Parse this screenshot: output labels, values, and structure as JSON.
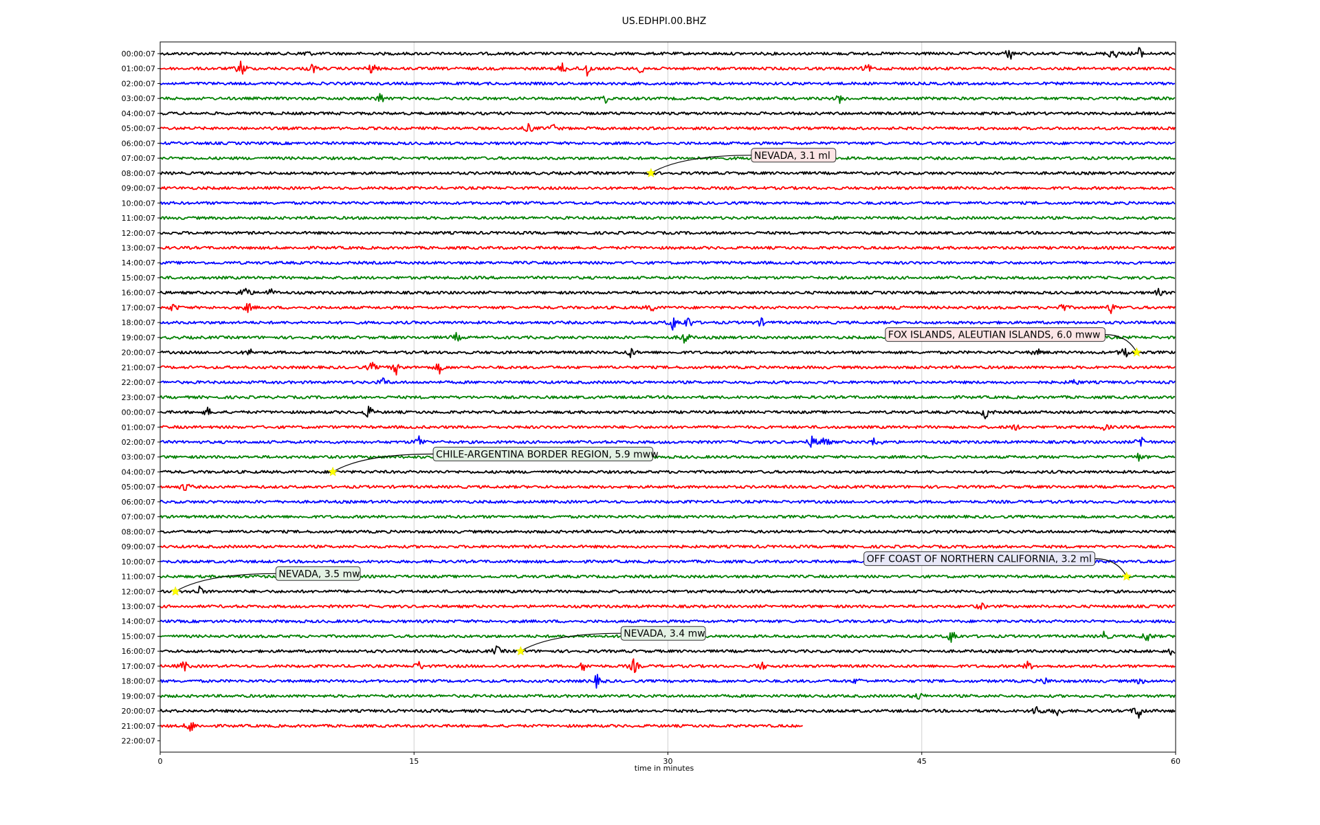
{
  "chart_data": {
    "type": "line",
    "title": "US.EDHPI.00.BHZ",
    "xlabel": "time in minutes",
    "ylabel": "",
    "xlim": [
      0,
      60
    ],
    "x_ticks": [
      "0",
      "15",
      "30",
      "45",
      "60"
    ],
    "x_tick_values": [
      0,
      15,
      30,
      45,
      60
    ],
    "grid": "vertical",
    "trace_colors": [
      "#000000",
      "#ff0000",
      "#0000ff",
      "#008000"
    ],
    "row_labels": [
      "00:00:07",
      "01:00:07",
      "02:00:07",
      "03:00:07",
      "04:00:07",
      "05:00:07",
      "06:00:07",
      "07:00:07",
      "08:00:07",
      "09:00:07",
      "10:00:07",
      "11:00:07",
      "12:00:07",
      "13:00:07",
      "14:00:07",
      "15:00:07",
      "16:00:07",
      "17:00:07",
      "18:00:07",
      "19:00:07",
      "20:00:07",
      "21:00:07",
      "22:00:07",
      "23:00:07",
      "00:00:07",
      "01:00:07",
      "02:00:07",
      "03:00:07",
      "04:00:07",
      "05:00:07",
      "06:00:07",
      "07:00:07",
      "08:00:07",
      "09:00:07",
      "10:00:07",
      "11:00:07",
      "12:00:07",
      "13:00:07",
      "14:00:07",
      "15:00:07",
      "16:00:07",
      "17:00:07",
      "18:00:07",
      "19:00:07",
      "20:00:07",
      "21:00:07",
      "22:00:07"
    ],
    "trace_end_minutes": [
      60,
      60,
      60,
      60,
      60,
      60,
      60,
      60,
      60,
      60,
      60,
      60,
      60,
      60,
      60,
      60,
      60,
      60,
      60,
      60,
      60,
      60,
      60,
      60,
      60,
      60,
      60,
      60,
      60,
      60,
      60,
      60,
      60,
      60,
      60,
      60,
      60,
      60,
      60,
      60,
      60,
      60,
      60,
      60,
      60,
      38,
      0
    ],
    "bursts": [
      {
        "row": 0,
        "minute": 8.6,
        "amp": 0.5
      },
      {
        "row": 0,
        "minute": 50.2,
        "amp": 0.8
      },
      {
        "row": 0,
        "minute": 56.3,
        "amp": 1.0
      },
      {
        "row": 0,
        "minute": 57.8,
        "amp": 0.9
      },
      {
        "row": 1,
        "minute": 4.8,
        "amp": 1.2
      },
      {
        "row": 1,
        "minute": 9.0,
        "amp": 0.6
      },
      {
        "row": 1,
        "minute": 12.5,
        "amp": 0.7
      },
      {
        "row": 1,
        "minute": 23.8,
        "amp": 0.7
      },
      {
        "row": 1,
        "minute": 25.2,
        "amp": 1.1
      },
      {
        "row": 1,
        "minute": 28.5,
        "amp": 0.9
      },
      {
        "row": 1,
        "minute": 41.8,
        "amp": 0.5
      },
      {
        "row": 3,
        "minute": 13.0,
        "amp": 0.7
      },
      {
        "row": 3,
        "minute": 26.3,
        "amp": 0.5
      },
      {
        "row": 3,
        "minute": 40.2,
        "amp": 0.6
      },
      {
        "row": 5,
        "minute": 21.8,
        "amp": 0.6
      },
      {
        "row": 5,
        "minute": 23.2,
        "amp": 0.5
      },
      {
        "row": 16,
        "minute": 5.0,
        "amp": 1.0
      },
      {
        "row": 16,
        "minute": 6.5,
        "amp": 0.5
      },
      {
        "row": 16,
        "minute": 59.0,
        "amp": 0.4
      },
      {
        "row": 17,
        "minute": 0.8,
        "amp": 0.5
      },
      {
        "row": 17,
        "minute": 5.2,
        "amp": 0.6
      },
      {
        "row": 17,
        "minute": 29.0,
        "amp": 0.5
      },
      {
        "row": 17,
        "minute": 43.8,
        "amp": 0.6
      },
      {
        "row": 17,
        "minute": 53.3,
        "amp": 0.6
      },
      {
        "row": 17,
        "minute": 56.2,
        "amp": 0.7
      },
      {
        "row": 18,
        "minute": 30.3,
        "amp": 1.0
      },
      {
        "row": 18,
        "minute": 31.2,
        "amp": 0.8
      },
      {
        "row": 18,
        "minute": 35.5,
        "amp": 0.5
      },
      {
        "row": 19,
        "minute": 17.5,
        "amp": 0.5
      },
      {
        "row": 19,
        "minute": 31.0,
        "amp": 0.9
      },
      {
        "row": 20,
        "minute": 5.3,
        "amp": 0.4
      },
      {
        "row": 20,
        "minute": 27.8,
        "amp": 0.6
      },
      {
        "row": 20,
        "minute": 51.8,
        "amp": 0.5
      },
      {
        "row": 20,
        "minute": 57.0,
        "amp": 0.9
      },
      {
        "row": 21,
        "minute": 12.5,
        "amp": 0.6
      },
      {
        "row": 21,
        "minute": 14.0,
        "amp": 1.0
      },
      {
        "row": 21,
        "minute": 16.5,
        "amp": 0.7
      },
      {
        "row": 22,
        "minute": 13.2,
        "amp": 0.5
      },
      {
        "row": 22,
        "minute": 54.0,
        "amp": 0.4
      },
      {
        "row": 24,
        "minute": 2.8,
        "amp": 0.5
      },
      {
        "row": 24,
        "minute": 12.3,
        "amp": 0.9
      },
      {
        "row": 24,
        "minute": 48.8,
        "amp": 0.9
      },
      {
        "row": 25,
        "minute": 50.5,
        "amp": 0.4
      },
      {
        "row": 25,
        "minute": 55.8,
        "amp": 0.4
      },
      {
        "row": 26,
        "minute": 15.3,
        "amp": 0.8
      },
      {
        "row": 26,
        "minute": 38.5,
        "amp": 0.7
      },
      {
        "row": 26,
        "minute": 39.2,
        "amp": 0.9
      },
      {
        "row": 26,
        "minute": 42.3,
        "amp": 0.8
      },
      {
        "row": 26,
        "minute": 58.0,
        "amp": 0.9
      },
      {
        "row": 27,
        "minute": 24.2,
        "amp": 0.5
      },
      {
        "row": 27,
        "minute": 57.8,
        "amp": 0.5
      },
      {
        "row": 29,
        "minute": 1.5,
        "amp": 0.6
      },
      {
        "row": 36,
        "minute": 2.3,
        "amp": 0.6
      },
      {
        "row": 37,
        "minute": 48.5,
        "amp": 0.4
      },
      {
        "row": 39,
        "minute": 46.8,
        "amp": 1.1
      },
      {
        "row": 39,
        "minute": 55.8,
        "amp": 0.6
      },
      {
        "row": 39,
        "minute": 58.3,
        "amp": 0.8
      },
      {
        "row": 40,
        "minute": 19.9,
        "amp": 0.6
      },
      {
        "row": 40,
        "minute": 59.8,
        "amp": 0.5
      },
      {
        "row": 41,
        "minute": 1.4,
        "amp": 0.7
      },
      {
        "row": 41,
        "minute": 15.3,
        "amp": 0.6
      },
      {
        "row": 41,
        "minute": 25.0,
        "amp": 0.6
      },
      {
        "row": 41,
        "minute": 28.0,
        "amp": 0.9
      },
      {
        "row": 41,
        "minute": 35.5,
        "amp": 0.6
      },
      {
        "row": 41,
        "minute": 51.3,
        "amp": 0.6
      },
      {
        "row": 42,
        "minute": 25.8,
        "amp": 0.8
      },
      {
        "row": 42,
        "minute": 41.2,
        "amp": 0.4
      },
      {
        "row": 42,
        "minute": 52.3,
        "amp": 0.4
      },
      {
        "row": 42,
        "minute": 57.9,
        "amp": 0.4
      },
      {
        "row": 43,
        "minute": 44.8,
        "amp": 0.5
      },
      {
        "row": 44,
        "minute": 51.8,
        "amp": 0.9
      },
      {
        "row": 44,
        "minute": 53.0,
        "amp": 0.6
      },
      {
        "row": 44,
        "minute": 57.8,
        "amp": 1.2
      },
      {
        "row": 45,
        "minute": 1.8,
        "amp": 0.9
      }
    ],
    "events": [
      {
        "label": "NEVADA, 3.1 ml",
        "row": 8,
        "minute": 29.0,
        "box": "#fce5e5"
      },
      {
        "label": "FOX ISLANDS, ALEUTIAN ISLANDS, 6.0 mww",
        "row": 20,
        "minute": 57.7,
        "box": "#fce5e5"
      },
      {
        "label": "CHILE-ARGENTINA BORDER REGION, 5.9 mww",
        "row": 28,
        "minute": 10.2,
        "box": "#e4f2e4"
      },
      {
        "label": "NEVADA, 3.5 mw",
        "row": 36,
        "minute": 0.9,
        "box": "#e4f2e4"
      },
      {
        "label": "OFF COAST OF NORTHERN CALIFORNIA, 3.2 ml",
        "row": 35,
        "minute": 57.1,
        "box": "#e8e8f8"
      },
      {
        "label": "NEVADA, 3.4 mw",
        "row": 40,
        "minute": 21.3,
        "box": "#e4f2e4"
      }
    ],
    "event_marker_color": "#ffff00"
  }
}
